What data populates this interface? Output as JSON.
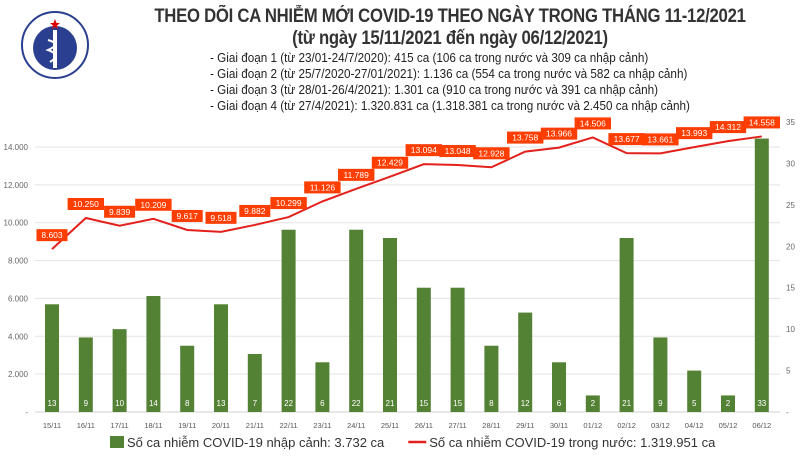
{
  "header": {
    "title": "THEO DÕI CA NHIỄM MỚI COVID-19 THEO NGÀY TRONG THÁNG 11-12/2021",
    "subtitle": "(từ ngày 15/11/2021 đến ngày 06/12/2021)",
    "notes": [
      "- Giai đoạn 1 (từ 23/01-24/7/2020): 415 ca (106 ca trong nước và 309 ca nhập cảnh)",
      "- Giai đoạn 2 (từ 25/7/2020-27/01/2021): 1.136 ca (554 ca trong nước và 582 ca nhập cảnh)",
      "- Giai đoạn 3 (từ 28/01-26/4/2021): 1.301 ca (910 ca trong nước và 391 ca nhập cảnh)",
      "- Giai đoạn 4 (từ 27/4/2021): 1.320.831 ca (1.318.381 ca trong nước và 2.450 ca nhập cảnh)"
    ],
    "logo_text": "BỘ Y TẾ MINISTRY OF HEALTH"
  },
  "chart_data": {
    "type": "bar+line",
    "categories": [
      "15/11",
      "16/11",
      "17/11",
      "18/11",
      "19/11",
      "20/11",
      "21/11",
      "22/11",
      "23/11",
      "24/11",
      "25/11",
      "26/11",
      "27/11",
      "28/11",
      "29/11",
      "30/11",
      "01/12",
      "02/12",
      "03/12",
      "04/12",
      "05/12",
      "06/12"
    ],
    "series": [
      {
        "name": "Số ca nhiễm COVID-19 nhập cảnh: 3.732 ca",
        "type": "bar",
        "axis": "right",
        "color": "#548235",
        "values": [
          13,
          9,
          10,
          14,
          8,
          13,
          7,
          22,
          6,
          22,
          21,
          15,
          15,
          8,
          12,
          6,
          2,
          21,
          9,
          5,
          2,
          33
        ]
      },
      {
        "name": "Số ca nhiễm COVID-19 trong nước: 1.319.951 ca",
        "type": "line",
        "axis": "left",
        "color": "#e3201b",
        "label_bg": "#fe3d00",
        "values": [
          8603,
          10250,
          9839,
          10209,
          9617,
          9518,
          9882,
          10299,
          11126,
          11789,
          12429,
          13094,
          13048,
          12928,
          13758,
          13966,
          14506,
          13677,
          13661,
          13993,
          14312,
          14558
        ]
      }
    ],
    "left_axis": {
      "range": [
        0,
        14000
      ],
      "ticks": [
        "-",
        "2.000",
        "4.000",
        "6.000",
        "8.000",
        "10.000",
        "12.000",
        "14.000"
      ]
    },
    "right_axis": {
      "range": [
        0,
        35
      ],
      "ticks": [
        "-",
        "5",
        "10",
        "15",
        "20",
        "25",
        "30",
        "35"
      ]
    },
    "grid": true,
    "legend": "bottom"
  }
}
